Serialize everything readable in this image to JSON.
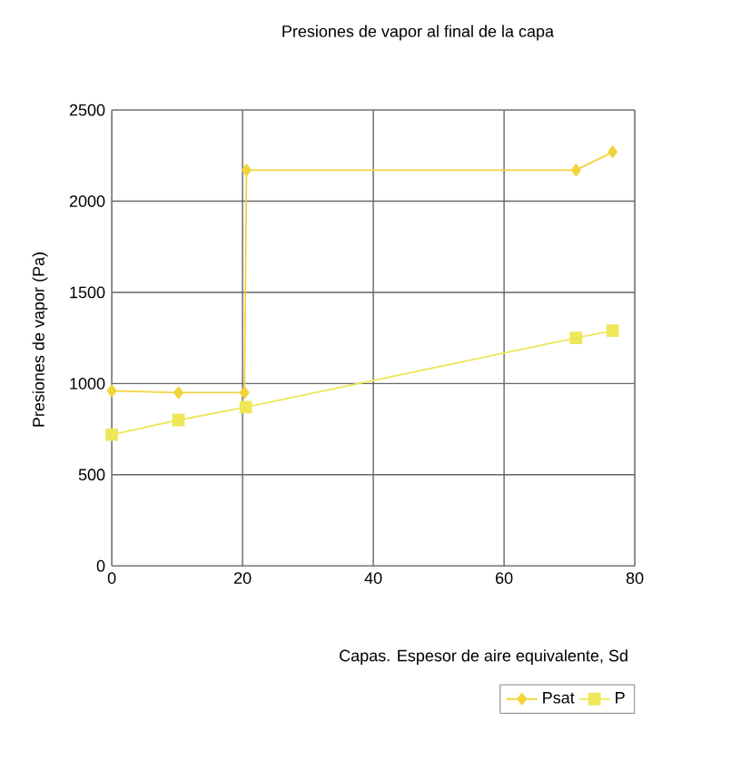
{
  "chart_data": {
    "type": "line",
    "title": "Presiones de vapor al final de la capa",
    "xlabel": "Capas. Espesor de aire equivalente, Sd",
    "ylabel": "Presiones de vapor (Pa)",
    "series": [
      {
        "name": "Psat",
        "color": "#f2d43c",
        "marker": "diamond",
        "x": [
          0,
          10.2,
          20.3,
          20.6,
          71,
          76.6
        ],
        "values": [
          960,
          950,
          950,
          2170,
          2170,
          2270
        ]
      },
      {
        "name": "P",
        "color": "#eee75a",
        "marker": "square",
        "x": [
          0,
          10.2,
          20.5,
          71,
          76.6
        ],
        "values": [
          720,
          800,
          870,
          1250,
          1290
        ]
      }
    ],
    "xlim": [
      0,
      80
    ],
    "xticks": [
      0,
      20,
      40,
      60,
      80
    ],
    "ylim": [
      0,
      2500
    ],
    "yticks": [
      0,
      500,
      1000,
      1500,
      2000,
      2500
    ],
    "grid": true,
    "legend": "bottom right",
    "line_style": "solid"
  }
}
